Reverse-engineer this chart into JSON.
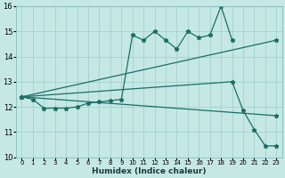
{
  "xlabel": "Humidex (Indice chaleur)",
  "background_color": "#c5e8e5",
  "grid_color": "#a8d5d0",
  "line_color": "#1a6e64",
  "xlim": [
    -0.5,
    23.5
  ],
  "ylim": [
    10,
    16
  ],
  "xticks": [
    0,
    1,
    2,
    3,
    4,
    5,
    6,
    7,
    8,
    9,
    10,
    11,
    12,
    13,
    14,
    15,
    16,
    17,
    18,
    19,
    20,
    21,
    22,
    23
  ],
  "yticks": [
    10,
    11,
    12,
    13,
    14,
    15,
    16
  ],
  "series": [
    {
      "x": [
        0,
        1,
        2,
        3,
        4,
        5,
        6,
        7,
        8,
        9,
        10,
        11,
        12,
        13,
        14,
        15,
        16,
        17,
        18,
        19
      ],
      "y": [
        12.4,
        12.3,
        11.95,
        11.95,
        11.95,
        12.0,
        12.15,
        12.2,
        12.25,
        12.3,
        14.85,
        14.65,
        15.0,
        14.65,
        14.3,
        15.0,
        14.75,
        14.85,
        16.0,
        14.65
      ]
    },
    {
      "x": [
        0,
        23
      ],
      "y": [
        12.4,
        14.65
      ]
    },
    {
      "x": [
        0,
        19,
        20,
        21,
        22,
        23
      ],
      "y": [
        12.4,
        13.0,
        11.85,
        11.1,
        10.45,
        10.45
      ]
    },
    {
      "x": [
        0,
        23
      ],
      "y": [
        12.4,
        11.65
      ]
    }
  ]
}
